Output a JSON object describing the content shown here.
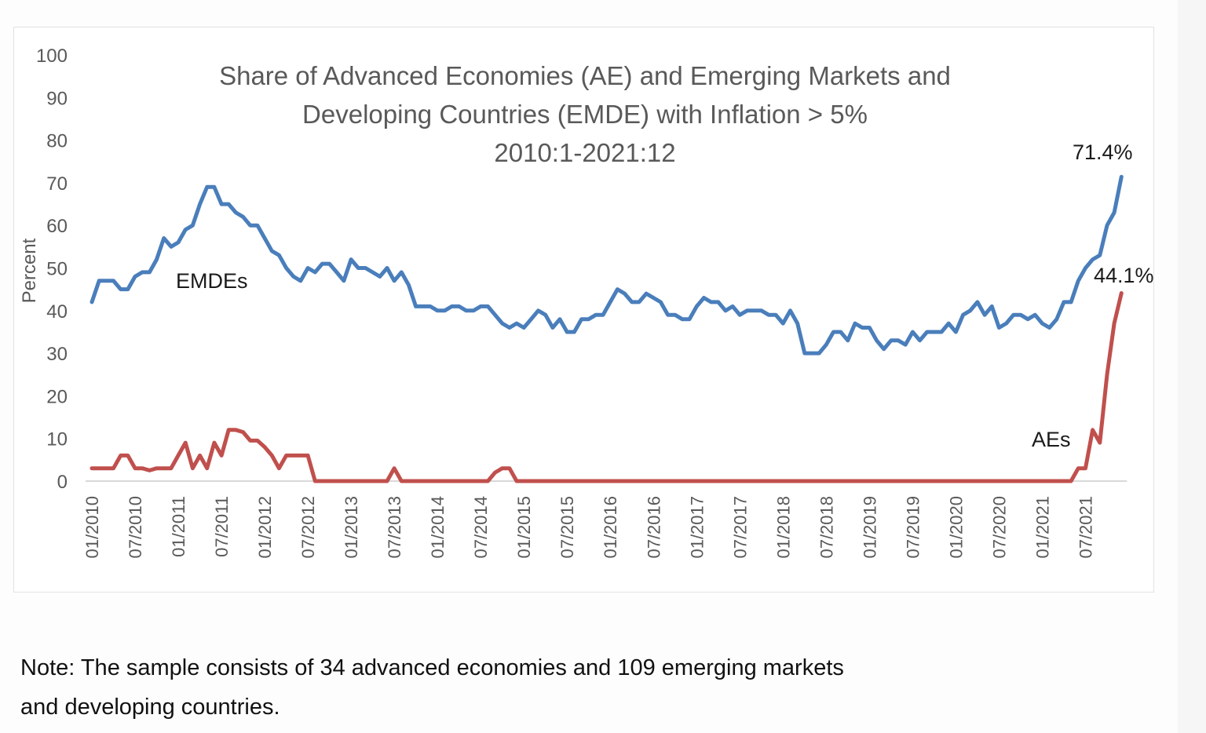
{
  "chart_data": {
    "type": "line",
    "title": [
      "Share of Advanced Economies (AE) and Emerging Markets and",
      "Developing Countries (EMDE) with Inflation > 5%",
      "2010:1-2021:12"
    ],
    "xlabel": "",
    "ylabel": "Percent",
    "ylim": [
      0,
      100
    ],
    "yticks": [
      0,
      10,
      20,
      30,
      40,
      50,
      60,
      70,
      80,
      90,
      100
    ],
    "grid": false,
    "legend": "none (inline series labels)",
    "x_start": "01/2010",
    "x_end": "12/2021",
    "x_frequency": "monthly",
    "xtick_labels": [
      "01/2010",
      "07/2010",
      "01/2011",
      "07/2011",
      "01/2012",
      "07/2012",
      "01/2013",
      "07/2013",
      "01/2014",
      "07/2014",
      "01/2015",
      "07/2015",
      "01/2016",
      "07/2016",
      "01/2017",
      "07/2017",
      "01/2018",
      "07/2018",
      "01/2019",
      "07/2019",
      "01/2020",
      "07/2020",
      "01/2021",
      "07/2021"
    ],
    "series": [
      {
        "name": "EMDEs",
        "label": "EMDEs",
        "color": "#4a7ebb",
        "end_label": "71.4%",
        "values": [
          42,
          47,
          47,
          47,
          45,
          45,
          48,
          49,
          49,
          52,
          57,
          55,
          56,
          59,
          60,
          65,
          69,
          69,
          65,
          65,
          63,
          62,
          60,
          60,
          57,
          54,
          53,
          50,
          48,
          47,
          50,
          49,
          51,
          51,
          49,
          47,
          52,
          50,
          50,
          49,
          48,
          50,
          47,
          49,
          46,
          41,
          41,
          41,
          40,
          40,
          41,
          41,
          40,
          40,
          41,
          41,
          39,
          37,
          36,
          37,
          36,
          38,
          40,
          39,
          36,
          38,
          35,
          35,
          38,
          38,
          39,
          39,
          42,
          45,
          44,
          42,
          42,
          44,
          43,
          42,
          39,
          39,
          38,
          38,
          41,
          43,
          42,
          42,
          40,
          41,
          39,
          40,
          40,
          40,
          39,
          39,
          37,
          40,
          37,
          30,
          30,
          30,
          32,
          35,
          35,
          33,
          37,
          36,
          36,
          33,
          31,
          33,
          33,
          32,
          35,
          33,
          35,
          35,
          35,
          37,
          35,
          39,
          40,
          42,
          39,
          41,
          36,
          37,
          39,
          39,
          38,
          39,
          37,
          36,
          38,
          42,
          42,
          47,
          50,
          52,
          53,
          60,
          63,
          71.4
        ]
      },
      {
        "name": "AEs",
        "label": "AEs",
        "color": "#c0504d",
        "end_label": "44.1%",
        "values": [
          3,
          3,
          3,
          3,
          6,
          6,
          3,
          3,
          2.5,
          3,
          3,
          3,
          6,
          9,
          3,
          6,
          3,
          9,
          6,
          12,
          12,
          11.5,
          9.5,
          9.5,
          8,
          6,
          3,
          6,
          6,
          6,
          6,
          0,
          0,
          0,
          0,
          0,
          0,
          0,
          0,
          0,
          0,
          0,
          3,
          0,
          0,
          0,
          0,
          0,
          0,
          0,
          0,
          0,
          0,
          0,
          0,
          0,
          2,
          3,
          3,
          0,
          0,
          0,
          0,
          0,
          0,
          0,
          0,
          0,
          0,
          0,
          0,
          0,
          0,
          0,
          0,
          0,
          0,
          0,
          0,
          0,
          0,
          0,
          0,
          0,
          0,
          0,
          0,
          0,
          0,
          0,
          0,
          0,
          0,
          0,
          0,
          0,
          0,
          0,
          0,
          0,
          0,
          0,
          0,
          0,
          0,
          0,
          0,
          0,
          0,
          0,
          0,
          0,
          0,
          0,
          0,
          0,
          0,
          0,
          0,
          0,
          0,
          0,
          0,
          0,
          0,
          0,
          0,
          0,
          0,
          0,
          0,
          0,
          0,
          0,
          0,
          0,
          0,
          3,
          3,
          12,
          9,
          25,
          37,
          44.1
        ]
      }
    ]
  },
  "note": {
    "line1": "Note: The sample consists of 34 advanced economies and 109 emerging markets",
    "line2": "and developing countries."
  }
}
